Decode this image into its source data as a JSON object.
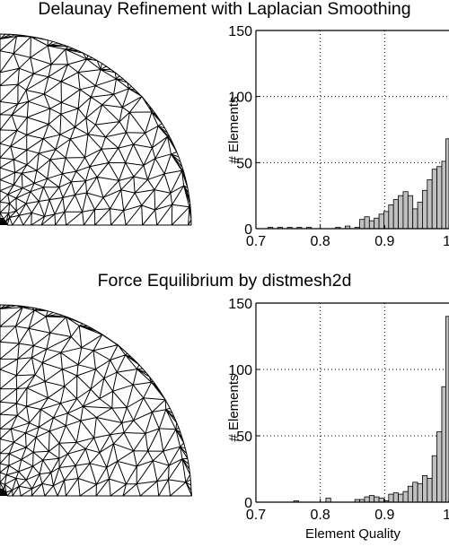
{
  "colors": {
    "background": "#ffffff",
    "line": "#000000",
    "bar_fill": "#c0c0c0",
    "bar_stroke": "#000000"
  },
  "panels": [
    {
      "title": "Delaunay Refinement with Laplacian Smoothing",
      "mesh_icon": "quarter-annulus-triangle-mesh"
    },
    {
      "title": "Force Equilibrium by distmesh2d",
      "mesh_icon": "quarter-annulus-triangle-mesh"
    }
  ],
  "chart_data": [
    {
      "type": "bar",
      "title": "Delaunay Refinement with Laplacian Smoothing",
      "xlabel": "",
      "ylabel": "# Elements",
      "xlim": [
        0.7,
        1.0
      ],
      "ylim": [
        0,
        150
      ],
      "xticks": [
        "0.7",
        "0.8",
        "0.9",
        "1"
      ],
      "yticks": [
        "0",
        "50",
        "100",
        "150"
      ],
      "grid": true,
      "bin_width": 0.0075,
      "x": [
        0.7225,
        0.7375,
        0.7525,
        0.7675,
        0.7825,
        0.8275,
        0.8425,
        0.8575,
        0.865,
        0.8725,
        0.88,
        0.8875,
        0.895,
        0.9025,
        0.91,
        0.9175,
        0.925,
        0.9325,
        0.94,
        0.9475,
        0.955,
        0.9625,
        0.97,
        0.9775,
        0.985,
        0.9925,
        0.9988
      ],
      "values": [
        1,
        1,
        1,
        1,
        1,
        1,
        2,
        1,
        7,
        9,
        6,
        8,
        11,
        13,
        18,
        22,
        25,
        28,
        25,
        15,
        20,
        29,
        37,
        45,
        47,
        51,
        68
      ]
    },
    {
      "type": "bar",
      "title": "Force Equilibrium by distmesh2d",
      "xlabel": "Element Quality",
      "ylabel": "# Elements",
      "xlim": [
        0.7,
        1.0
      ],
      "ylim": [
        0,
        150
      ],
      "xticks": [
        "0.7",
        "0.8",
        "0.9",
        "1"
      ],
      "yticks": [
        "0",
        "50",
        "100",
        "150"
      ],
      "grid": true,
      "bin_width": 0.0075,
      "x": [
        0.7625,
        0.8125,
        0.8575,
        0.865,
        0.8725,
        0.88,
        0.8875,
        0.895,
        0.9025,
        0.91,
        0.9175,
        0.925,
        0.9325,
        0.94,
        0.9475,
        0.955,
        0.9625,
        0.97,
        0.9775,
        0.985,
        0.9925,
        0.9988
      ],
      "values": [
        1,
        3,
        2,
        2,
        4,
        5,
        4,
        3,
        1,
        6,
        7,
        6,
        8,
        12,
        15,
        14,
        20,
        18,
        35,
        53,
        87,
        140
      ]
    }
  ]
}
